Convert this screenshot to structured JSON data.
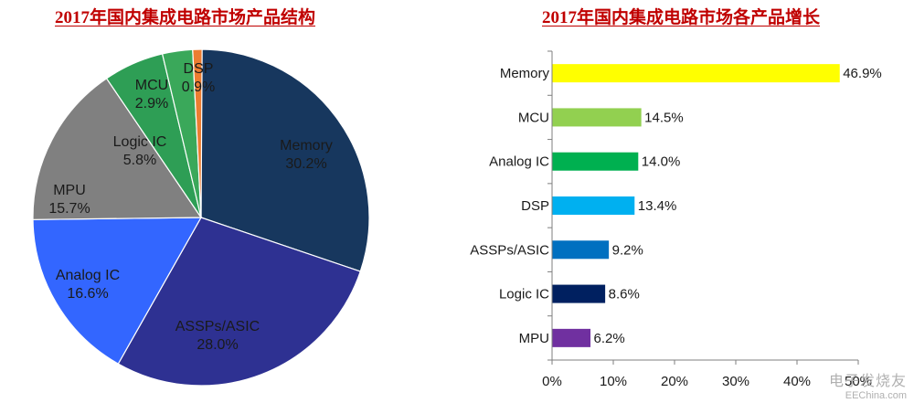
{
  "chart_data": [
    {
      "type": "pie",
      "title": "2017年国内集成电路市场产品结构",
      "slices": [
        {
          "label": "Memory",
          "value": 30.2,
          "value_label": "30.2%",
          "color": "#17375e"
        },
        {
          "label": "ASSPs/ASIC",
          "value": 28.0,
          "value_label": "28.0%",
          "color": "#2e3192"
        },
        {
          "label": "Analog IC",
          "value": 16.6,
          "value_label": "16.6%",
          "color": "#3366ff"
        },
        {
          "label": "MPU",
          "value": 15.7,
          "value_label": "15.7%",
          "color": "#808080"
        },
        {
          "label": "Logic IC",
          "value": 5.8,
          "value_label": "5.8%",
          "color": "#2e9e55"
        },
        {
          "label": "MCU",
          "value": 2.9,
          "value_label": "2.9%",
          "color": "#3aa85a"
        },
        {
          "label": "DSP",
          "value": 0.9,
          "value_label": "0.9%",
          "color": "#ed7d31"
        }
      ],
      "extra_slice_color": "#9dc3e6",
      "start": "12 o'clock, clockwise"
    },
    {
      "type": "bar",
      "orientation": "horizontal",
      "title": "2017年国内集成电路市场各产品增长",
      "categories": [
        "Memory",
        "MCU",
        "Analog IC",
        "DSP",
        "ASSPs/ASIC",
        "Logic IC",
        "MPU"
      ],
      "values": [
        46.9,
        14.5,
        14.0,
        13.4,
        9.2,
        8.6,
        6.2
      ],
      "value_labels": [
        "46.9%",
        "14.5%",
        "14.0%",
        "13.4%",
        "9.2%",
        "8.6%",
        "6.2%"
      ],
      "colors": [
        "#ffff00",
        "#92d050",
        "#00b050",
        "#00b0f0",
        "#0070c0",
        "#002060",
        "#7030a0"
      ],
      "xlim": [
        0,
        50
      ],
      "xticks": [
        "0%",
        "10%",
        "20%",
        "30%",
        "40%",
        "50%"
      ],
      "grid": false
    }
  ],
  "watermark": {
    "main": "电子发烧友",
    "sub": "EEChina.com"
  }
}
